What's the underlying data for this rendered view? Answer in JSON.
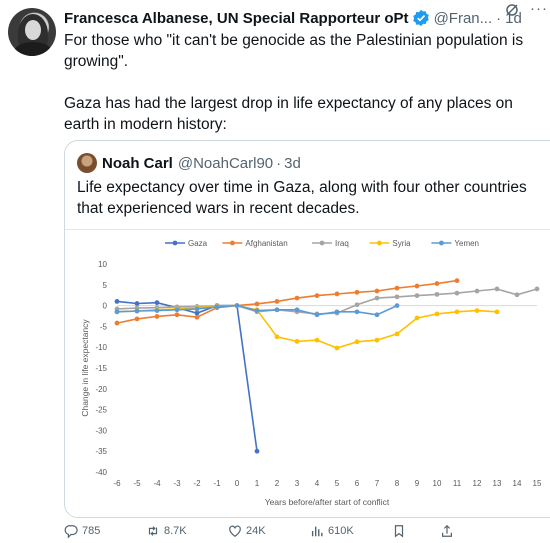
{
  "tweet": {
    "author": "Francesca Albanese, UN Special Rapporteur oPt",
    "handle": "@Fran...",
    "dot": "·",
    "time": "1d",
    "more_icon": "more-icon",
    "paragraphs": [
      "For those who \"it can't be genocide as the Palestinian population is growing\".",
      "Gaza has had the largest drop in life expectancy of any places on earth in modern history:"
    ]
  },
  "quote": {
    "author": "Noah Carl",
    "handle": "@NoahCarl90",
    "dot": "·",
    "time": "3d",
    "text": "Life expectancy over time in Gaza, along with four other countries that experienced wars in recent decades."
  },
  "actions": {
    "replies": "785",
    "reposts": "8.7K",
    "likes": "24K",
    "views": "610K"
  },
  "colors": {
    "Gaza": "#4472c4",
    "Afghanistan": "#ed7d31",
    "Iraq": "#a5a5a5",
    "Syria": "#ffc000",
    "Yemen": "#5b9bd5",
    "verified": "#1d9bf0"
  },
  "chart_data": {
    "type": "line",
    "xlabel": "Years before/after start of conflict",
    "ylabel": "Change in life expectancy",
    "xlim": [
      -6,
      15
    ],
    "ylim": [
      -40,
      10
    ],
    "xticks": [
      -6,
      -5,
      -4,
      -3,
      -2,
      -1,
      0,
      1,
      2,
      3,
      4,
      5,
      6,
      7,
      8,
      9,
      10,
      11,
      12,
      13,
      14,
      15
    ],
    "yticks": [
      10,
      5,
      0,
      -5,
      -10,
      -15,
      -20,
      -25,
      -30,
      -35,
      -40
    ],
    "legend_position": "top",
    "grid": false,
    "series": [
      {
        "name": "Gaza",
        "x": [
          -6,
          -5,
          -4,
          -3,
          -2,
          -1,
          0,
          1
        ],
        "y": [
          1.0,
          0.5,
          0.7,
          -0.5,
          -1.8,
          0,
          0,
          -35
        ]
      },
      {
        "name": "Afghanistan",
        "x": [
          -6,
          -5,
          -4,
          -3,
          -2,
          -1,
          0,
          1,
          2,
          3,
          4,
          5,
          6,
          7,
          8,
          9,
          10,
          11
        ],
        "y": [
          -4.2,
          -3.2,
          -2.6,
          -2.2,
          -2.8,
          -0.5,
          0,
          0.4,
          1.0,
          1.8,
          2.4,
          2.8,
          3.2,
          3.5,
          4.2,
          4.7,
          5.3,
          6.0
        ]
      },
      {
        "name": "Iraq",
        "x": [
          -6,
          -5,
          -4,
          -3,
          -2,
          -1,
          0,
          1,
          2,
          3,
          4,
          5,
          6,
          7,
          8,
          9,
          10,
          11,
          12,
          13,
          14,
          15
        ],
        "y": [
          -0.8,
          -0.6,
          -0.5,
          -0.3,
          -0.2,
          -0.1,
          0,
          -1.5,
          -1.0,
          -1.5,
          -2.0,
          -1.8,
          0.2,
          1.8,
          2.1,
          2.4,
          2.7,
          3.0,
          3.5,
          4.0,
          2.6,
          4.0
        ]
      },
      {
        "name": "Syria",
        "x": [
          -6,
          -5,
          -4,
          -3,
          -2,
          -1,
          0,
          1,
          2,
          3,
          4,
          5,
          6,
          7,
          8,
          9,
          10,
          11,
          12,
          13
        ],
        "y": [
          -1.5,
          -1.3,
          -1.0,
          -0.8,
          -0.5,
          -0.2,
          0,
          -1.0,
          -7.5,
          -8.6,
          -8.3,
          -10.2,
          -8.7,
          -8.3,
          -6.8,
          -3.0,
          -2.0,
          -1.5,
          -1.2,
          -1.5
        ]
      },
      {
        "name": "Yemen",
        "x": [
          -6,
          -5,
          -4,
          -3,
          -2,
          -1,
          0,
          1,
          2,
          3,
          4,
          5,
          6,
          7,
          8
        ],
        "y": [
          -1.5,
          -1.3,
          -1.2,
          -1.0,
          -0.8,
          -0.3,
          0,
          -1.2,
          -1.0,
          -1.0,
          -2.2,
          -1.5,
          -1.5,
          -2.2,
          0
        ]
      }
    ]
  }
}
